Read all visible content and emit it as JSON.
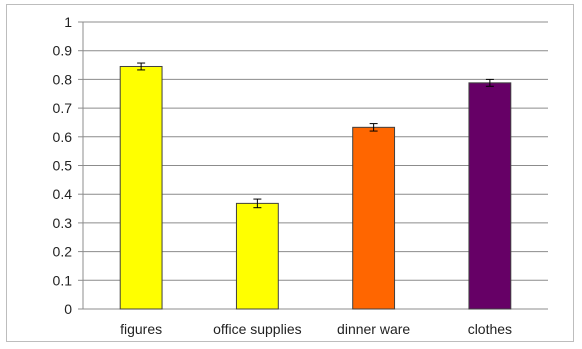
{
  "chart_data": {
    "type": "bar",
    "title": "",
    "xlabel": "",
    "ylabel": "",
    "categories": [
      "figures",
      "office supplies",
      "dinner ware",
      "clothes"
    ],
    "series": [
      {
        "values": [
          0.845,
          0.368,
          0.633,
          0.788
        ],
        "error": [
          0.012,
          0.015,
          0.013,
          0.012
        ],
        "colors": [
          "#ffff00",
          "#ffff00",
          "#ff6600",
          "#660066"
        ]
      }
    ],
    "ylim": [
      0,
      1
    ],
    "yticks": [
      "0",
      "0.1",
      "0.2",
      "0.3",
      "0.4",
      "0.5",
      "0.6",
      "0.7",
      "0.8",
      "0.9",
      "1"
    ],
    "grid": true,
    "legend": "none"
  }
}
